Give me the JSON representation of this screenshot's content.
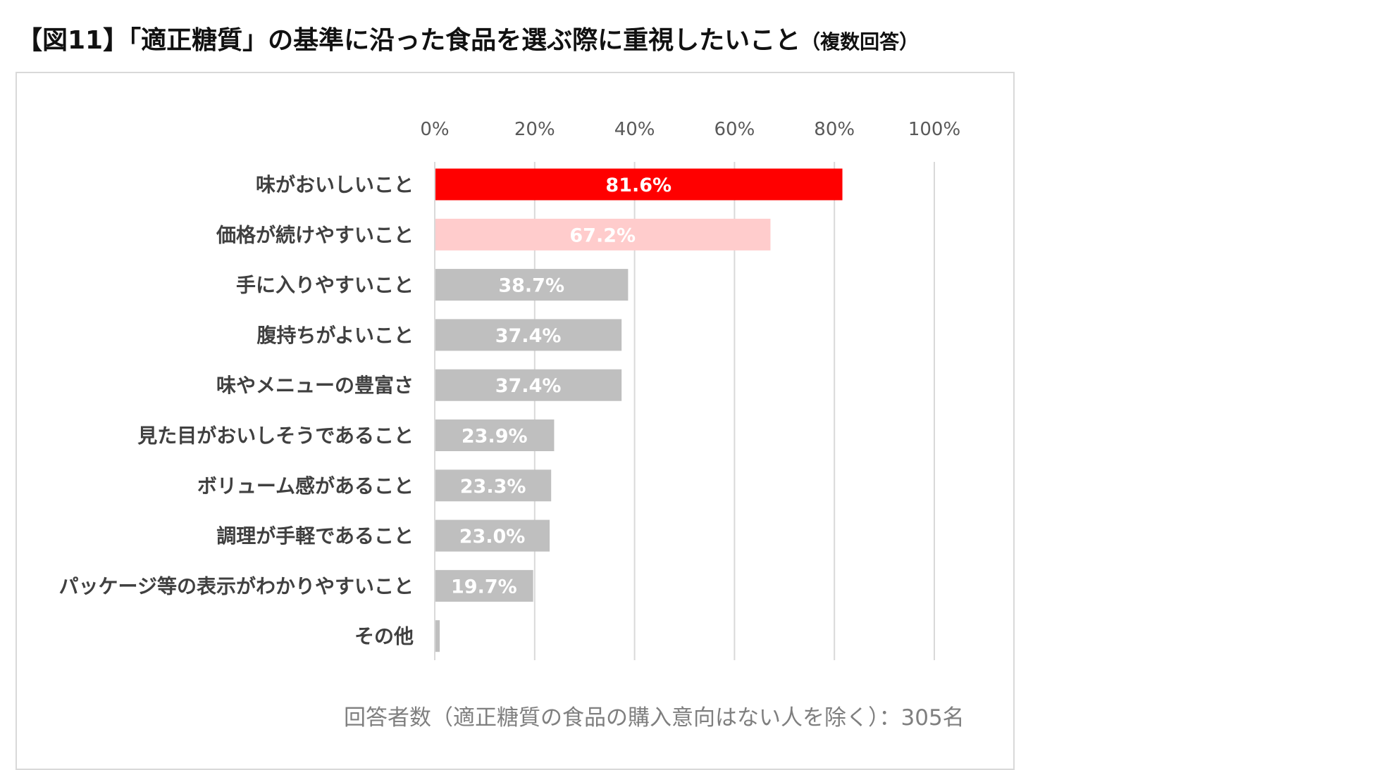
{
  "figure": {
    "title": "【図11】「適正糖質」の基準に沿った食品を選ぶ際に重視したいこと",
    "subtitle": "（複数回答）"
  },
  "footnote": "回答者数（適正糖質の食品の購入意向はない人を除く）：305名",
  "chart_data": {
    "type": "bar",
    "orientation": "horizontal",
    "categories": [
      "味がおいしいこと",
      "価格が続けやすいこと",
      "手に入りやすいこと",
      "腹持ちがよいこと",
      "味やメニューの豊富さ",
      "見た目がおいしそうであること",
      "ボリューム感があること",
      "調理が手軽であること",
      "パッケージ等の表示がわかりやすいこと",
      "その他"
    ],
    "values": [
      81.6,
      67.2,
      38.7,
      37.4,
      37.4,
      23.9,
      23.3,
      23.0,
      19.7,
      1.0
    ],
    "value_labels": [
      "81.6%",
      "67.2%",
      "38.7%",
      "37.4%",
      "37.4%",
      "23.9%",
      "23.3%",
      "23.0%",
      "19.7%",
      ""
    ],
    "bar_colors": [
      "#ff0000",
      "#ffcccc",
      "#bfbfbf",
      "#bfbfbf",
      "#bfbfbf",
      "#bfbfbf",
      "#bfbfbf",
      "#bfbfbf",
      "#bfbfbf",
      "#bfbfbf"
    ],
    "xlim": [
      0,
      100
    ],
    "xticks": [
      0,
      20,
      40,
      60,
      80,
      100
    ],
    "xtick_labels": [
      "0%",
      "20%",
      "40%",
      "60%",
      "80%",
      "100%"
    ],
    "xaxis_position": "top",
    "grid": true,
    "legend": "none"
  }
}
